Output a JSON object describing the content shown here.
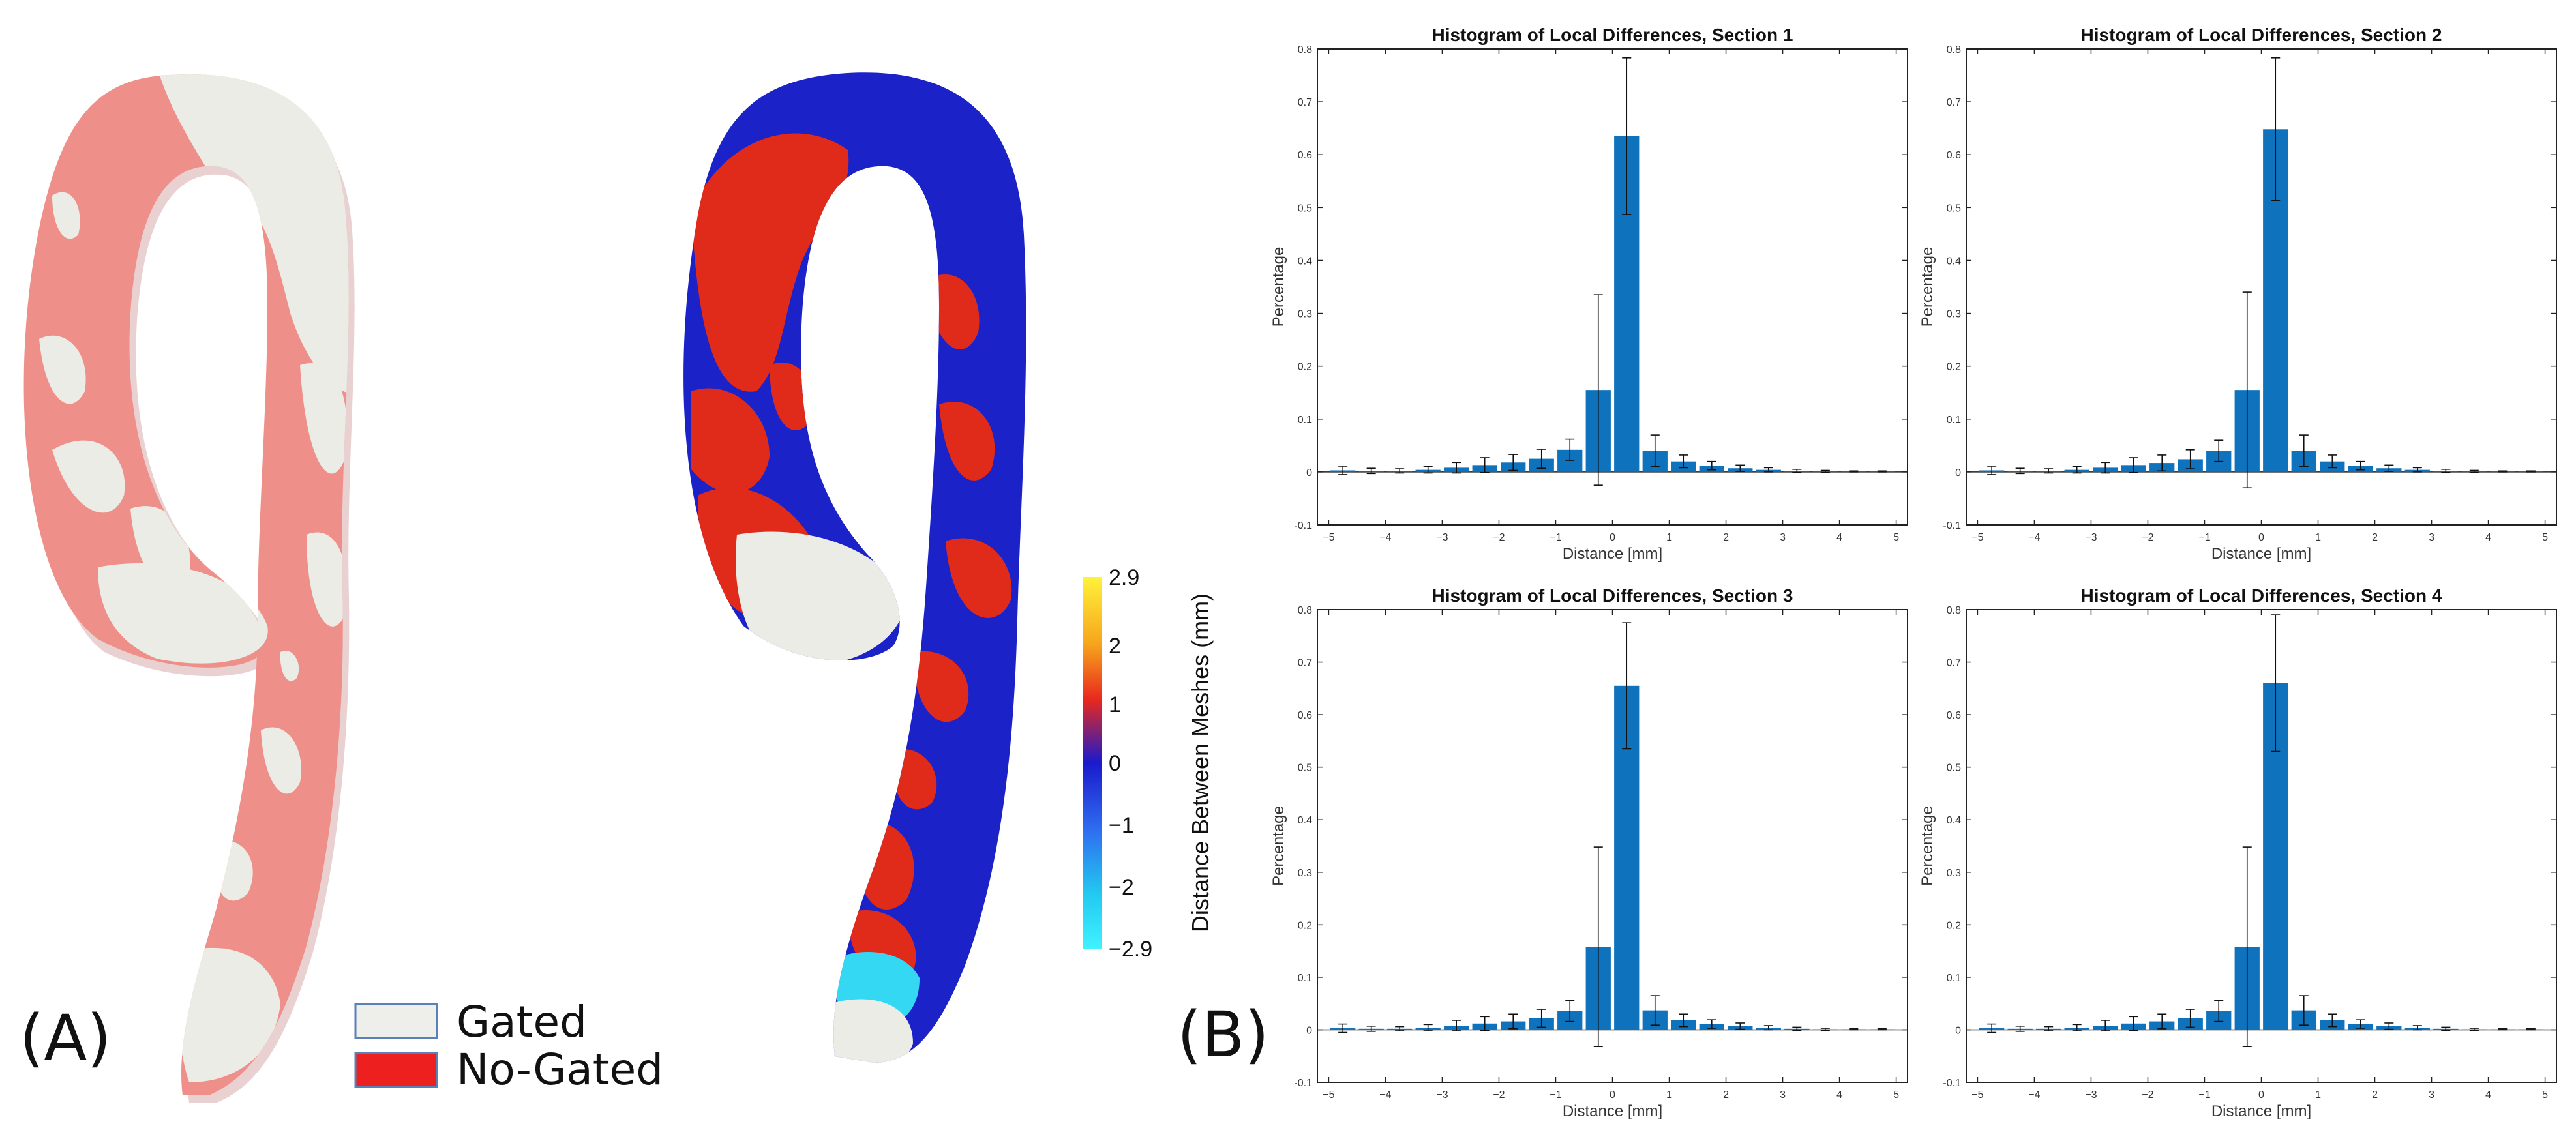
{
  "panels": {
    "a_label": "(A)",
    "b_label": "(B)"
  },
  "legend": {
    "items": [
      {
        "label": "Gated",
        "color": "#eeeeea"
      },
      {
        "label": "No-Gated",
        "color": "#ee1f1f"
      }
    ]
  },
  "colorbar": {
    "title": "Distance Between Meshes (mm)",
    "ticks": [
      "2.9",
      "2",
      "1",
      "0",
      "−1",
      "−2",
      "−2.9"
    ],
    "colors": [
      "#fff23a",
      "#f7a51c",
      "#e8281e",
      "#1a1acc",
      "#2f6df0",
      "#22c8f0",
      "#3ff2ff"
    ]
  },
  "chart_data": [
    {
      "type": "bar",
      "title": "Histogram of Local Differences, Section 1",
      "xlabel": "Distance [mm]",
      "ylabel": "Percentage",
      "xlim": [
        -5.2,
        5.2
      ],
      "ylim": [
        -0.1,
        0.8
      ],
      "xticks": [
        -5,
        -4,
        -3,
        -2,
        -1,
        0,
        1,
        2,
        3,
        4,
        5
      ],
      "yticks": [
        -0.1,
        0,
        0.1,
        0.2,
        0.3,
        0.4,
        0.5,
        0.6,
        0.7,
        0.8
      ],
      "x": [
        -4.75,
        -4.25,
        -3.75,
        -3.25,
        -2.75,
        -2.25,
        -1.75,
        -1.25,
        -0.75,
        -0.25,
        0.25,
        0.75,
        1.25,
        1.75,
        2.25,
        2.75,
        3.25,
        3.75,
        4.25,
        4.75
      ],
      "values": [
        0.003,
        0.002,
        0.002,
        0.004,
        0.008,
        0.013,
        0.018,
        0.025,
        0.042,
        0.155,
        0.635,
        0.04,
        0.02,
        0.012,
        0.007,
        0.004,
        0.002,
        0.001,
        0.001,
        0.001
      ],
      "errors": [
        0.008,
        0.005,
        0.004,
        0.006,
        0.01,
        0.014,
        0.015,
        0.018,
        0.02,
        0.18,
        0.148,
        0.03,
        0.012,
        0.008,
        0.006,
        0.004,
        0.003,
        0.002,
        0.001,
        0.001
      ],
      "color": "#0f72bd"
    },
    {
      "type": "bar",
      "title": "Histogram of Local Differences, Section 2",
      "xlabel": "Distance [mm]",
      "ylabel": "Percentage",
      "xlim": [
        -5.2,
        5.2
      ],
      "ylim": [
        -0.1,
        0.8
      ],
      "xticks": [
        -5,
        -4,
        -3,
        -2,
        -1,
        0,
        1,
        2,
        3,
        4,
        5
      ],
      "yticks": [
        -0.1,
        0,
        0.1,
        0.2,
        0.3,
        0.4,
        0.5,
        0.6,
        0.7,
        0.8
      ],
      "x": [
        -4.75,
        -4.25,
        -3.75,
        -3.25,
        -2.75,
        -2.25,
        -1.75,
        -1.25,
        -0.75,
        -0.25,
        0.25,
        0.75,
        1.25,
        1.75,
        2.25,
        2.75,
        3.25,
        3.75,
        4.25,
        4.75
      ],
      "values": [
        0.003,
        0.002,
        0.002,
        0.004,
        0.008,
        0.013,
        0.017,
        0.024,
        0.04,
        0.155,
        0.648,
        0.04,
        0.02,
        0.012,
        0.007,
        0.004,
        0.002,
        0.001,
        0.001,
        0.001
      ],
      "errors": [
        0.008,
        0.005,
        0.004,
        0.006,
        0.01,
        0.014,
        0.015,
        0.018,
        0.02,
        0.185,
        0.135,
        0.03,
        0.012,
        0.008,
        0.006,
        0.004,
        0.003,
        0.002,
        0.001,
        0.001
      ],
      "color": "#0f72bd"
    },
    {
      "type": "bar",
      "title": "Histogram of Local Differences, Section 3",
      "xlabel": "Distance [mm]",
      "ylabel": "Percentage",
      "xlim": [
        -5.2,
        5.2
      ],
      "ylim": [
        -0.1,
        0.8
      ],
      "xticks": [
        -5,
        -4,
        -3,
        -2,
        -1,
        0,
        1,
        2,
        3,
        4,
        5
      ],
      "yticks": [
        -0.1,
        0,
        0.1,
        0.2,
        0.3,
        0.4,
        0.5,
        0.6,
        0.7,
        0.8
      ],
      "x": [
        -4.75,
        -4.25,
        -3.75,
        -3.25,
        -2.75,
        -2.25,
        -1.75,
        -1.25,
        -0.75,
        -0.25,
        0.25,
        0.75,
        1.25,
        1.75,
        2.25,
        2.75,
        3.25,
        3.75,
        4.25,
        4.75
      ],
      "values": [
        0.003,
        0.002,
        0.002,
        0.004,
        0.008,
        0.012,
        0.016,
        0.022,
        0.036,
        0.158,
        0.655,
        0.037,
        0.018,
        0.011,
        0.007,
        0.004,
        0.002,
        0.001,
        0.001,
        0.001
      ],
      "errors": [
        0.008,
        0.005,
        0.004,
        0.006,
        0.01,
        0.013,
        0.014,
        0.017,
        0.02,
        0.19,
        0.12,
        0.028,
        0.012,
        0.008,
        0.006,
        0.004,
        0.003,
        0.002,
        0.001,
        0.001
      ],
      "color": "#0f72bd"
    },
    {
      "type": "bar",
      "title": "Histogram of Local Differences, Section 4",
      "xlabel": "Distance [mm]",
      "ylabel": "Percentage",
      "xlim": [
        -5.2,
        5.2
      ],
      "ylim": [
        -0.1,
        0.8
      ],
      "xticks": [
        -5,
        -4,
        -3,
        -2,
        -1,
        0,
        1,
        2,
        3,
        4,
        5
      ],
      "yticks": [
        -0.1,
        0,
        0.1,
        0.2,
        0.3,
        0.4,
        0.5,
        0.6,
        0.7,
        0.8
      ],
      "x": [
        -4.75,
        -4.25,
        -3.75,
        -3.25,
        -2.75,
        -2.25,
        -1.75,
        -1.25,
        -0.75,
        -0.25,
        0.25,
        0.75,
        1.25,
        1.75,
        2.25,
        2.75,
        3.25,
        3.75,
        4.25,
        4.75
      ],
      "values": [
        0.003,
        0.002,
        0.002,
        0.004,
        0.008,
        0.012,
        0.016,
        0.022,
        0.036,
        0.158,
        0.66,
        0.037,
        0.018,
        0.011,
        0.007,
        0.004,
        0.002,
        0.001,
        0.001,
        0.001
      ],
      "errors": [
        0.008,
        0.005,
        0.004,
        0.006,
        0.01,
        0.013,
        0.014,
        0.017,
        0.02,
        0.19,
        0.13,
        0.028,
        0.012,
        0.008,
        0.006,
        0.004,
        0.003,
        0.002,
        0.001,
        0.001
      ],
      "color": "#0f72bd"
    }
  ]
}
